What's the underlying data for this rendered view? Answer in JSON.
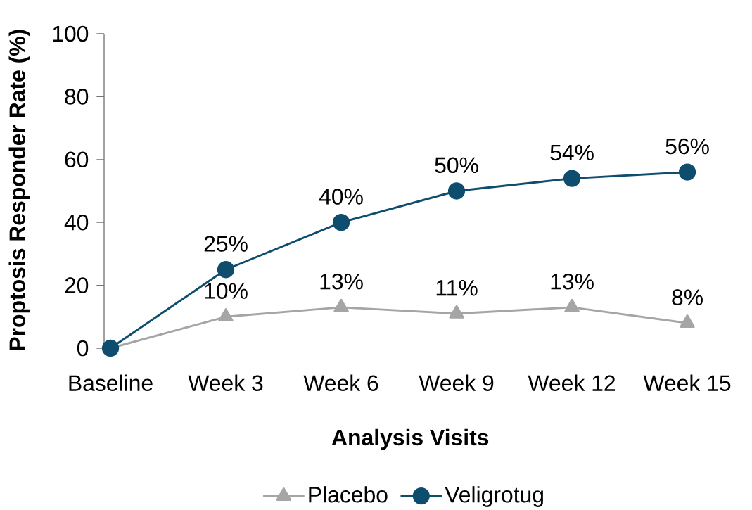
{
  "chart_data": {
    "type": "line",
    "xlabel": "Analysis Visits",
    "ylabel": "Proptosis Responder Rate (%)",
    "categories": [
      "Baseline",
      "Week 3",
      "Week 6",
      "Week 9",
      "Week 12",
      "Week 15"
    ],
    "ylim": [
      0,
      100
    ],
    "yticks": [
      0,
      20,
      40,
      60,
      80,
      100
    ],
    "legend": "bottom",
    "series": [
      {
        "name": "Placebo",
        "color": "#a5a5a5",
        "marker": "triangle",
        "values": [
          0,
          10,
          13,
          11,
          13,
          8
        ],
        "value_labels": [
          null,
          "10%",
          "13%",
          "11%",
          "13%",
          "8%"
        ]
      },
      {
        "name": "Veligrotug",
        "color": "#0f4d6f",
        "marker": "circle",
        "values": [
          0,
          25,
          40,
          50,
          54,
          56
        ],
        "value_labels": [
          null,
          "25%",
          "40%",
          "50%",
          "54%",
          "56%"
        ]
      }
    ]
  }
}
